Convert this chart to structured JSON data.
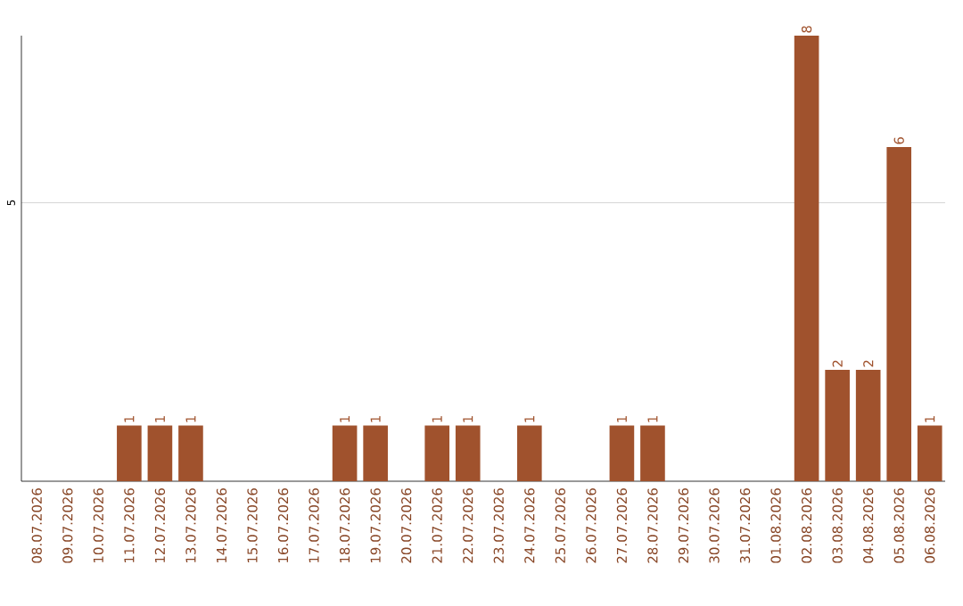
{
  "chart_data": {
    "type": "bar",
    "categories": [
      "08.07.2026",
      "09.07.2026",
      "10.07.2026",
      "11.07.2026",
      "12.07.2026",
      "13.07.2026",
      "14.07.2026",
      "15.07.2026",
      "16.07.2026",
      "17.07.2026",
      "18.07.2026",
      "19.07.2026",
      "20.07.2026",
      "21.07.2026",
      "22.07.2026",
      "23.07.2026",
      "24.07.2026",
      "25.07.2026",
      "26.07.2026",
      "27.07.2026",
      "28.07.2026",
      "29.07.2026",
      "30.07.2026",
      "31.07.2026",
      "01.08.2026",
      "02.08.2026",
      "03.08.2026",
      "04.08.2026",
      "05.08.2026",
      "06.08.2026"
    ],
    "values": [
      0,
      0,
      0,
      1,
      1,
      1,
      0,
      0,
      0,
      0,
      1,
      1,
      0,
      1,
      1,
      0,
      1,
      0,
      0,
      1,
      1,
      0,
      0,
      0,
      0,
      8,
      2,
      2,
      6,
      1
    ],
    "value_labels": [
      null,
      null,
      null,
      "1",
      "1",
      "1",
      null,
      null,
      null,
      null,
      "1",
      "1",
      null,
      "1",
      "1",
      null,
      "1",
      null,
      null,
      "1",
      "1",
      null,
      null,
      null,
      null,
      "8",
      "2",
      "2",
      "6",
      "1"
    ],
    "color": "#a0522d",
    "ylim": [
      0,
      8
    ],
    "yticks": [
      5
    ],
    "grid": "y"
  }
}
